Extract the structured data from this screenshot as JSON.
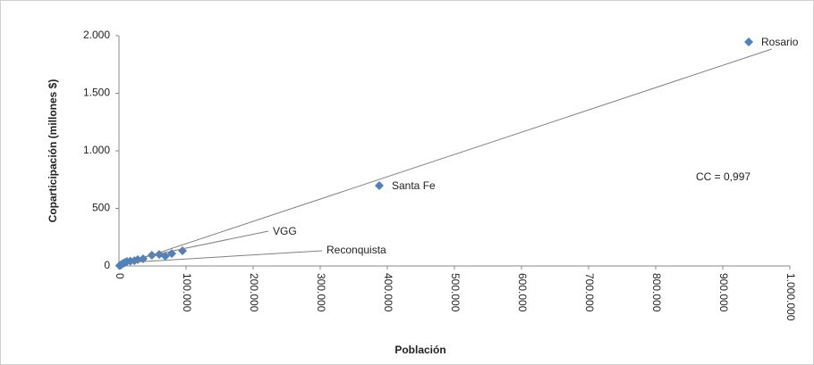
{
  "chart_data": {
    "type": "scatter",
    "xlabel": "Población",
    "ylabel": "Coparticipación (millones $)",
    "xlim": [
      0,
      1000000
    ],
    "ylim": [
      0,
      2000
    ],
    "xticks": [
      0,
      {
        "value": 100000,
        "label": "100.000"
      },
      {
        "value": 200000,
        "label": "200.000"
      },
      {
        "value": 300000,
        "label": "300.000"
      },
      {
        "value": 400000,
        "label": "400.000"
      },
      {
        "value": 500000,
        "label": "500.000"
      },
      {
        "value": 600000,
        "label": "600.000"
      },
      {
        "value": 700000,
        "label": "700.000"
      },
      {
        "value": 800000,
        "label": "800.000"
      },
      {
        "value": 900000,
        "label": "900.000"
      },
      {
        "value": 1000000,
        "label": "1.000.000"
      }
    ],
    "yticks": [
      0,
      500,
      {
        "value": 1000,
        "label": "1.000"
      },
      {
        "value": 1500,
        "label": "1.500"
      },
      {
        "value": 2000,
        "label": "2.000"
      }
    ],
    "grid": false,
    "series": [
      {
        "color": "#4f81bd",
        "x": [
          938700,
          388000,
          94700,
          78700,
          69000,
          60000,
          49000,
          36000,
          28000,
          23000,
          17000,
          12000,
          9000,
          6700,
          4000,
          2700,
          1000
        ],
        "values": [
          1946,
          698,
          132,
          108,
          85,
          100,
          93,
          62,
          55,
          46,
          42,
          39,
          30,
          23,
          15,
          8,
          3
        ],
        "labels": [
          "Rosario",
          "Santa Fe",
          null,
          null,
          null,
          null,
          null,
          null,
          null,
          null,
          null,
          null,
          null,
          null,
          null,
          null,
          null
        ]
      }
    ],
    "trendline": {
      "color": "#808080",
      "x": [
        0,
        973000
      ],
      "values": [
        0,
        1884
      ]
    },
    "annotations": [
      "VGG",
      "Reconquista",
      "CC = 0,997"
    ]
  }
}
